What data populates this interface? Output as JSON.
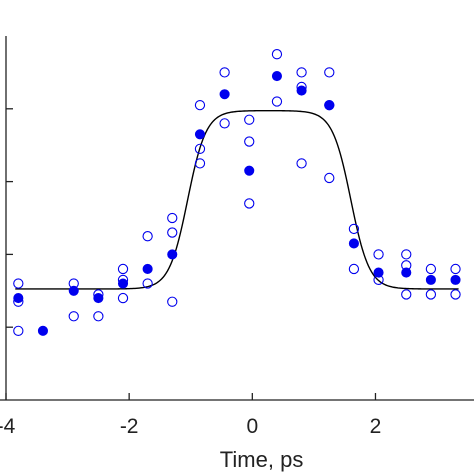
{
  "chart_data": {
    "type": "scatter",
    "title": "",
    "xlabel": "Time, ps",
    "ylabel": "",
    "xlim": [
      -4,
      3.6
    ],
    "ylim": [
      0.0,
      1.0
    ],
    "x_ticks": [
      -4,
      -2,
      0,
      2
    ],
    "x_tick_labels": [
      "-4",
      "-2",
      "0",
      "2"
    ],
    "y_ticks": [
      0.2,
      0.4,
      0.6,
      0.8
    ],
    "grid": false,
    "legend": "none",
    "colors": {
      "marker": "#0000ee",
      "fit": "#000000",
      "axis": "#222222"
    },
    "series": [
      {
        "marker": "open-circle",
        "points": [
          [
            -3.8,
            0.32
          ],
          [
            -3.8,
            0.27
          ],
          [
            -3.8,
            0.19
          ],
          [
            -2.9,
            0.32
          ],
          [
            -2.9,
            0.23
          ],
          [
            -2.5,
            0.29
          ],
          [
            -2.5,
            0.23
          ],
          [
            -2.1,
            0.36
          ],
          [
            -2.1,
            0.33
          ],
          [
            -2.1,
            0.28
          ],
          [
            -1.7,
            0.45
          ],
          [
            -1.7,
            0.32
          ],
          [
            -1.3,
            0.5
          ],
          [
            -1.3,
            0.46
          ],
          [
            -1.3,
            0.27
          ],
          [
            -0.85,
            0.81
          ],
          [
            -0.85,
            0.69
          ],
          [
            -0.85,
            0.65
          ],
          [
            -0.45,
            0.9
          ],
          [
            -0.45,
            0.76
          ],
          [
            -0.05,
            0.77
          ],
          [
            -0.05,
            0.71
          ],
          [
            -0.05,
            0.54
          ],
          [
            0.4,
            0.95
          ],
          [
            0.4,
            0.82
          ],
          [
            0.8,
            0.9
          ],
          [
            0.8,
            0.86
          ],
          [
            0.8,
            0.65
          ],
          [
            1.25,
            0.9
          ],
          [
            1.25,
            0.81
          ],
          [
            1.25,
            0.61
          ],
          [
            1.65,
            0.47
          ],
          [
            1.65,
            0.36
          ],
          [
            2.05,
            0.4
          ],
          [
            2.05,
            0.33
          ],
          [
            2.5,
            0.4
          ],
          [
            2.5,
            0.37
          ],
          [
            2.5,
            0.29
          ],
          [
            2.9,
            0.36
          ],
          [
            2.9,
            0.29
          ],
          [
            3.3,
            0.36
          ],
          [
            3.3,
            0.29
          ]
        ]
      },
      {
        "marker": "filled-circle",
        "points": [
          [
            -3.8,
            0.28
          ],
          [
            -3.4,
            0.19
          ],
          [
            -2.9,
            0.3
          ],
          [
            -2.5,
            0.28
          ],
          [
            -2.1,
            0.32
          ],
          [
            -1.7,
            0.36
          ],
          [
            -1.3,
            0.4
          ],
          [
            -0.85,
            0.73
          ],
          [
            -0.45,
            0.84
          ],
          [
            -0.05,
            0.63
          ],
          [
            0.4,
            0.89
          ],
          [
            0.8,
            0.85
          ],
          [
            1.25,
            0.81
          ],
          [
            1.65,
            0.43
          ],
          [
            2.05,
            0.35
          ],
          [
            2.5,
            0.35
          ],
          [
            2.9,
            0.33
          ],
          [
            3.3,
            0.33
          ]
        ]
      }
    ],
    "fit_curve": {
      "style": "black-line",
      "baseline": 0.305,
      "plateau": 0.795,
      "rise_center": -1.05,
      "fall_center": 1.6,
      "edge_width": 0.15,
      "x_range": [
        -3.85,
        3.35
      ]
    }
  }
}
